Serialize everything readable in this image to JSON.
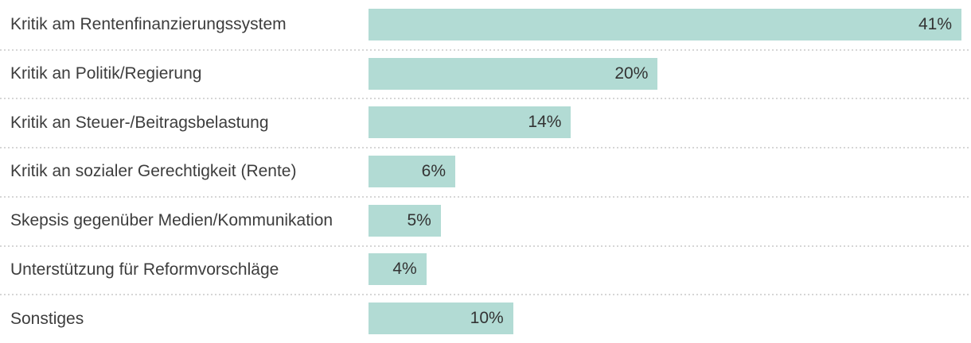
{
  "chart_data": {
    "type": "bar",
    "orientation": "horizontal",
    "categories": [
      "Kritik am Rentenfinanzierungssystem",
      "Kritik an Politik/Regierung",
      "Kritik an Steuer-/Beitragsbelastung",
      "Kritik an sozialer Gerechtigkeit (Rente)",
      "Skepsis gegenüber Medien/Kommunikation",
      "Unterstützung für Reformvorschläge",
      "Sonstiges"
    ],
    "values": [
      41,
      20,
      14,
      6,
      5,
      4,
      10
    ],
    "value_labels": [
      "41%",
      "20%",
      "14%",
      "6%",
      "5%",
      "4%",
      "10%"
    ],
    "max_value": 41,
    "unit": "%",
    "grid": "off",
    "legend": "none",
    "value_label_position": "inside-end",
    "bar_color": "#b2dbd4",
    "label_color": "#3d3d3d",
    "value_color": "#333333",
    "separator_color": "#d6d6d6",
    "background_color": "#ffffff"
  }
}
